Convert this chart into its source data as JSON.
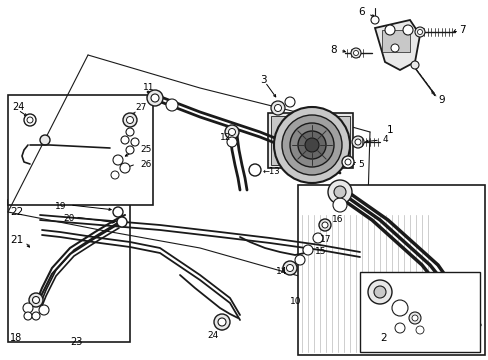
{
  "bg_color": "#ffffff",
  "lc": "#1a1a1a",
  "figsize": [
    4.89,
    3.6
  ],
  "dpi": 100,
  "gray1": "#c8c8c8",
  "gray2": "#a0a0a0",
  "gray3": "#e8e8e8",
  "gray4": "#888888"
}
